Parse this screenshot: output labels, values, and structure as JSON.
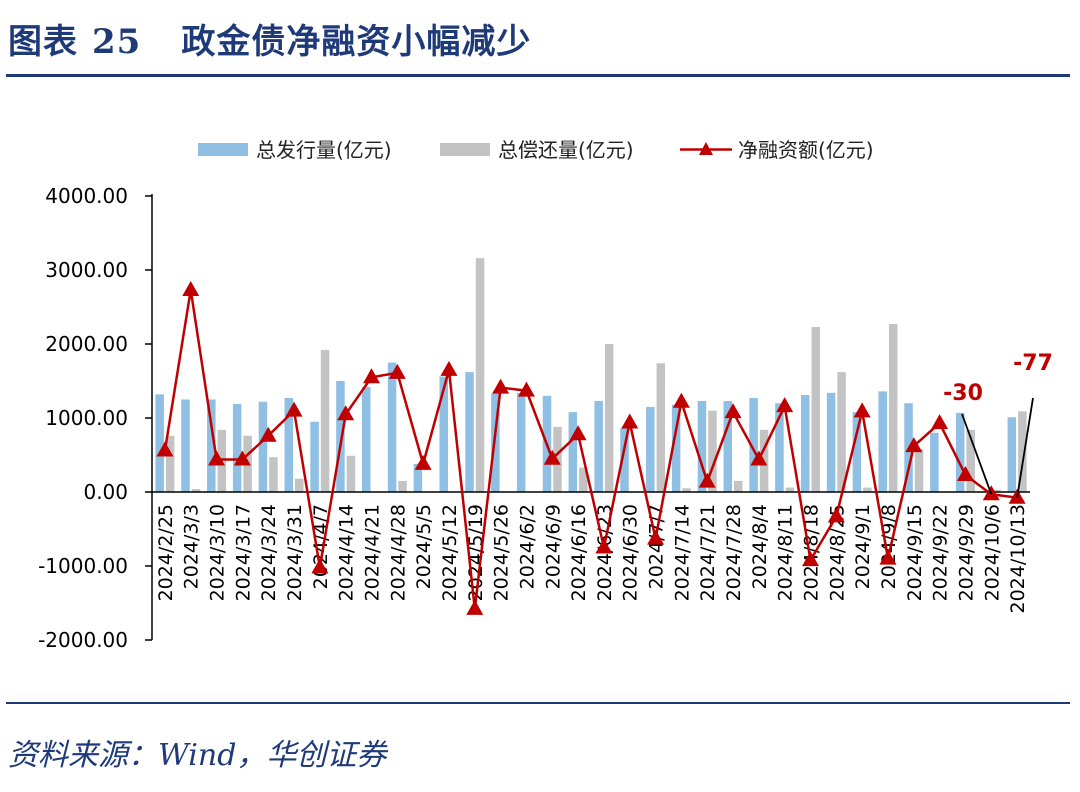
{
  "header": {
    "figure_label": "图表",
    "figure_number": "25",
    "title": "政金债净融资小幅减少"
  },
  "footer": {
    "source": "资料来源：Wind，华创证券"
  },
  "colors": {
    "title": "#1f3a78",
    "issuance": "#8fbfe3",
    "repayment": "#c3c3c3",
    "net": "#c00000"
  },
  "chart_data": {
    "type": "bar",
    "title": "",
    "xlabel": "",
    "ylabel": "",
    "ylim": [
      -2000,
      4000
    ],
    "yticks": [
      -2000,
      -1000,
      0,
      1000,
      2000,
      3000,
      4000
    ],
    "ytick_labels": [
      "-2000.00",
      "-1000.00",
      "0.00",
      "1000.00",
      "2000.00",
      "3000.00",
      "4000.00"
    ],
    "grid": false,
    "legend_position": "top",
    "categories": [
      "2024/2/25",
      "2024/3/3",
      "2024/3/10",
      "2024/3/17",
      "2024/3/24",
      "2024/3/31",
      "2024/4/7",
      "2024/4/14",
      "2024/4/21",
      "2024/4/28",
      "2024/5/5",
      "2024/5/12",
      "2024/5/19",
      "2024/5/26",
      "2024/6/2",
      "2024/6/9",
      "2024/6/16",
      "2024/6/23",
      "2024/6/30",
      "2024/7/7",
      "2024/7/14",
      "2024/7/21",
      "2024/7/28",
      "2024/8/4",
      "2024/8/11",
      "2024/8/18",
      "2024/8/25",
      "2024/9/1",
      "2024/9/8",
      "2024/9/15",
      "2024/9/22",
      "2024/9/29",
      "2024/10/6",
      "2024/10/13"
    ],
    "series": [
      {
        "name": "总发行量(亿元)",
        "kind": "bar",
        "values": [
          1320,
          1250,
          1250,
          1190,
          1220,
          1270,
          950,
          1500,
          1420,
          1750,
          380,
          1560,
          1620,
          1330,
          1340,
          1300,
          1080,
          1230,
          860,
          1150,
          1180,
          1230,
          1230,
          1270,
          1200,
          1310,
          1340,
          1080,
          1360,
          1200,
          800,
          1070,
          0,
          1010
        ]
      },
      {
        "name": "总偿还量(亿元)",
        "kind": "bar",
        "values": [
          760,
          40,
          840,
          760,
          470,
          180,
          1920,
          490,
          0,
          150,
          0,
          0,
          3160,
          0,
          0,
          880,
          330,
          2000,
          0,
          1740,
          50,
          1100,
          150,
          840,
          60,
          2230,
          1620,
          60,
          2270,
          580,
          0,
          840,
          30,
          1090
        ]
      },
      {
        "name": "净融资额(亿元)",
        "kind": "line",
        "values": [
          560,
          2730,
          440,
          440,
          760,
          1100,
          -1020,
          1050,
          1550,
          1610,
          380,
          1650,
          -1580,
          1410,
          1370,
          450,
          780,
          -750,
          940,
          -630,
          1220,
          140,
          1080,
          440,
          1160,
          -920,
          -330,
          1090,
          -900,
          620,
          930,
          230,
          -30,
          -77
        ]
      }
    ],
    "annotations": [
      {
        "text": "-30",
        "category": "2024/10/6",
        "value": -30
      },
      {
        "text": "-77",
        "category": "2024/10/13",
        "value": -77
      }
    ]
  }
}
